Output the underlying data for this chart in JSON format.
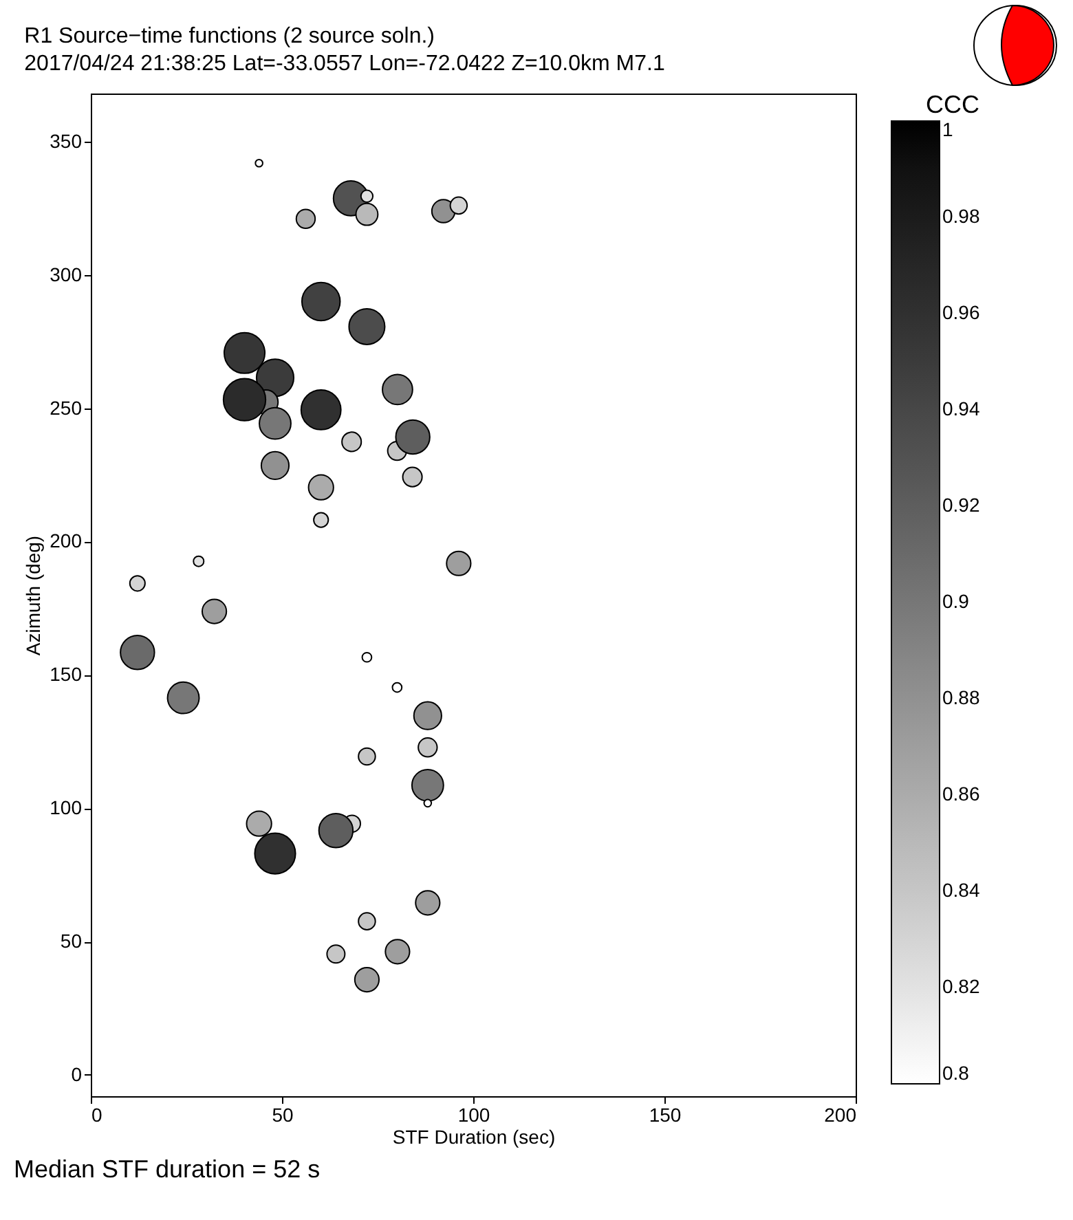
{
  "chart_data": {
    "type": "bubble",
    "title": "R1 Source−time functions (2 source soln.)",
    "subtitle": "2017/04/24 21:38:25  Lat=-33.0557 Lon=-72.0422  Z=10.0km  M7.1",
    "xlabel": "STF Duration (sec)",
    "ylabel": "Azimuth (deg)",
    "clabel": "CCC",
    "annotations": [
      "Median STF duration = 52 s"
    ],
    "x": [
      44,
      68,
      72.2,
      72.2,
      56.2,
      92.2,
      96.2,
      60.2,
      72.2,
      40.2,
      48.2,
      45.8,
      40.2,
      60.2,
      48.2,
      80.2,
      68.2,
      80.1,
      84.2,
      48.2,
      84.1,
      60.2,
      60.2,
      28.2,
      96.2,
      12.2,
      32.3,
      12.2,
      24.2,
      72.2,
      80.1,
      88.1,
      88.1,
      88.1,
      88.1,
      72.2,
      44,
      48.2,
      68.3,
      64.1,
      88.1,
      72.2,
      64.1,
      80.2,
      72.2
    ],
    "values": [
      341.9,
      328.7,
      329.5,
      322.7,
      321,
      323.9,
      326,
      290,
      280.6,
      270.7,
      261.4,
      252.3,
      253.2,
      249.4,
      244.3,
      257,
      237.4,
      234,
      239.2,
      228.5,
      224.2,
      220.3,
      208.1,
      192.6,
      191.8,
      184.3,
      173.8,
      158.4,
      141.4,
      156.6,
      145.3,
      134.7,
      122.8,
      108.6,
      101.9,
      119.4,
      94.2,
      83,
      94.2,
      91.6,
      64.5,
      57.6,
      45.3,
      46.2,
      35.7
    ],
    "sizes": [
      0.03,
      0.68,
      0.08,
      0.27,
      0.2,
      0.3,
      0.16,
      0.82,
      0.72,
      0.93,
      0.78,
      0.33,
      1,
      0.89,
      0.56,
      0.51,
      0.21,
      0.2,
      0.65,
      0.43,
      0.21,
      0.35,
      0.12,
      0.06,
      0.33,
      0.13,
      0.33,
      0.65,
      0.56,
      0.05,
      0.05,
      0.43,
      0.2,
      0.56,
      0.03,
      0.16,
      0.35,
      0.93,
      0.16,
      0.65,
      0.33,
      0.16,
      0.18,
      0.33,
      0.33
    ],
    "cvalues": [
      0.8,
      0.93,
      0.82,
      0.85,
      0.86,
      0.88,
      0.83,
      0.945,
      0.935,
      0.955,
      0.95,
      0.9,
      0.965,
      0.96,
      0.9,
      0.9,
      0.84,
      0.84,
      0.92,
      0.88,
      0.84,
      0.86,
      0.83,
      0.82,
      0.87,
      0.83,
      0.87,
      0.91,
      0.9,
      0.8,
      0.8,
      0.88,
      0.84,
      0.9,
      0.8,
      0.84,
      0.86,
      0.96,
      0.83,
      0.92,
      0.87,
      0.84,
      0.84,
      0.87,
      0.87
    ],
    "xlim": [
      0,
      200
    ],
    "ylim": [
      -8,
      368
    ],
    "xticks": [
      0,
      50,
      100,
      150,
      200
    ],
    "yticks": [
      0,
      50,
      100,
      150,
      200,
      250,
      300,
      350
    ],
    "clim": [
      0.8,
      1
    ],
    "cticks": [
      0.8,
      0.82,
      0.84,
      0.86,
      0.88,
      0.9,
      0.92,
      0.94,
      0.96,
      0.98,
      1
    ]
  }
}
